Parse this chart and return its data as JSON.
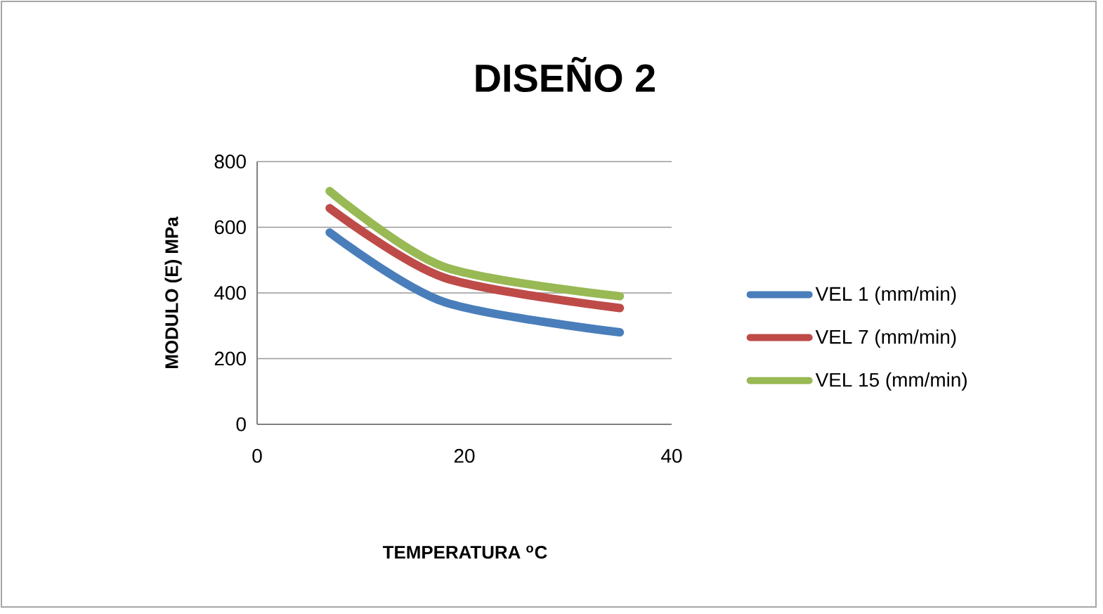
{
  "chart_data": {
    "type": "line",
    "title": "DISEÑO 2",
    "xlabel": "TEMPERATURA $^{o}$C",
    "ylabel": "MODULO (E) MPa",
    "x": [
      7,
      18,
      35
    ],
    "series": [
      {
        "name": "VEL 1 (mm/min)",
        "color": "#4a7ebb",
        "values": [
          584,
          373,
          280
        ]
      },
      {
        "name": "VEL 7 (mm/min)",
        "color": "#be4b48",
        "values": [
          658,
          447,
          354
        ]
      },
      {
        "name": "VEL 15 (mm/min)",
        "color": "#98b954",
        "values": [
          710,
          480,
          390
        ]
      }
    ],
    "xlim": [
      0,
      40
    ],
    "xticks": [
      0,
      20,
      40
    ],
    "ylim": [
      0,
      800
    ],
    "yticks": [
      0,
      200,
      400,
      600,
      800
    ],
    "grid": "y",
    "legend": "right",
    "marker": "none",
    "line_style": "solid"
  }
}
